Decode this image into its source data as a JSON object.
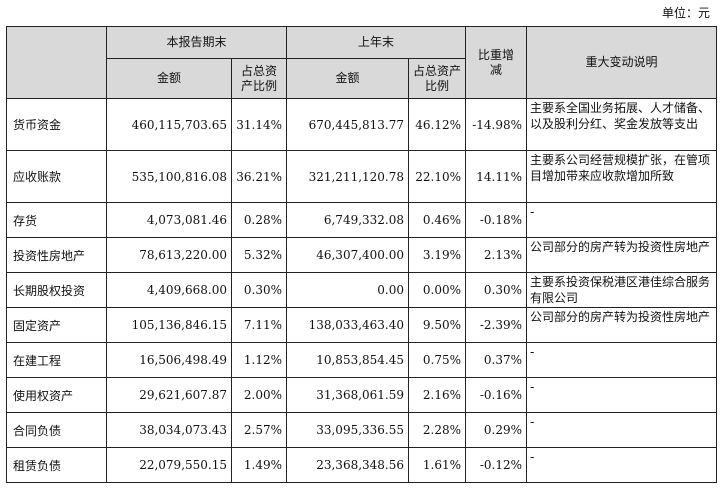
{
  "unit_label": "单位：元",
  "header": {
    "item": "",
    "current_period": "本报告期末",
    "last_year_end": "上年末",
    "change": "比重增减",
    "explanation": "重大变动说明",
    "amount": "金额",
    "ratio": "占总资产比例"
  },
  "rows": [
    {
      "item": "货币资金",
      "cur_amount": "460,115,703.65",
      "cur_ratio": "31.14%",
      "prev_amount": "670,445,813.77",
      "prev_ratio": "46.12%",
      "change": "-14.98%",
      "note": "主要系全国业务拓展、人才储备、以及股利分红、奖金发放等支出"
    },
    {
      "item": "应收账款",
      "cur_amount": "535,100,816.08",
      "cur_ratio": "36.21%",
      "prev_amount": "321,211,120.78",
      "prev_ratio": "22.10%",
      "change": "14.11%",
      "note": "主要系公司经营规模扩张，在管项目增加带来应收款增加所致"
    },
    {
      "item": "存货",
      "cur_amount": "4,073,081.46",
      "cur_ratio": "0.28%",
      "prev_amount": "6,749,332.08",
      "prev_ratio": "0.46%",
      "change": "-0.18%",
      "note": "-"
    },
    {
      "item": "投资性房地产",
      "cur_amount": "78,613,220.00",
      "cur_ratio": "5.32%",
      "prev_amount": "46,307,400.00",
      "prev_ratio": "3.19%",
      "change": "2.13%",
      "note": "公司部分的房产转为投资性房地产"
    },
    {
      "item": "长期股权投资",
      "cur_amount": "4,409,668.00",
      "cur_ratio": "0.30%",
      "prev_amount": "0.00",
      "prev_ratio": "0.00%",
      "change": "0.30%",
      "note": "主要系投资保税港区港佳综合服务有限公司"
    },
    {
      "item": "固定资产",
      "cur_amount": "105,136,846.15",
      "cur_ratio": "7.11%",
      "prev_amount": "138,033,463.40",
      "prev_ratio": "9.50%",
      "change": "-2.39%",
      "note": "公司部分的房产转为投资性房地产"
    },
    {
      "item": "在建工程",
      "cur_amount": "16,506,498.49",
      "cur_ratio": "1.12%",
      "prev_amount": "10,853,854.45",
      "prev_ratio": "0.75%",
      "change": "0.37%",
      "note": "-"
    },
    {
      "item": "使用权资产",
      "cur_amount": "29,621,607.87",
      "cur_ratio": "2.00%",
      "prev_amount": "31,368,061.59",
      "prev_ratio": "2.16%",
      "change": "-0.16%",
      "note": "-"
    },
    {
      "item": "合同负债",
      "cur_amount": "38,034,073.43",
      "cur_ratio": "2.57%",
      "prev_amount": "33,095,336.55",
      "prev_ratio": "2.28%",
      "change": "0.29%",
      "note": "-"
    },
    {
      "item": "租赁负债",
      "cur_amount": "22,079,550.15",
      "cur_ratio": "1.49%",
      "prev_amount": "23,368,348.56",
      "prev_ratio": "1.61%",
      "change": "-0.12%",
      "note": "-"
    }
  ]
}
